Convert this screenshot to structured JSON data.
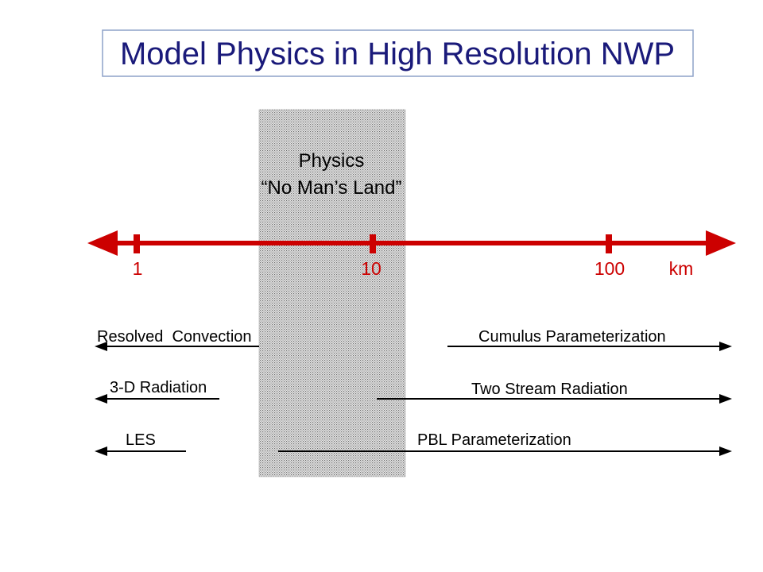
{
  "title": "Model Physics in High Resolution NWP",
  "zone": {
    "line1": "Physics",
    "line2": "“No Man’s Land”"
  },
  "axis": {
    "ticks": [
      "1",
      "10",
      "100"
    ],
    "unit": "km",
    "color": "#cc0000"
  },
  "processes": {
    "resolved_convection": "Resolved  Convection",
    "radiation_3d": "3-D Radiation",
    "les": "LES",
    "cumulus": "Cumulus Parameterization",
    "two_stream": "Two Stream Radiation",
    "pbl": "PBL Parameterization"
  },
  "colors": {
    "title_text": "#1a1a7a",
    "title_border": "#8ea2c8",
    "axis": "#cc0000",
    "arrows": "#000000",
    "shading": "#b8b8b8"
  }
}
